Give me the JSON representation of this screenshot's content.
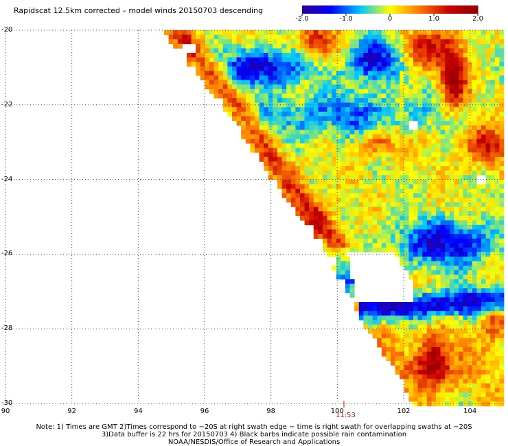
{
  "title": "Rapidscat 12.5km corrected – model winds 20150703 descending",
  "colorbar": {
    "min": -2.0,
    "max": 2.0,
    "tick_labels": [
      "-2.0",
      "-1.0",
      "0",
      "1.0",
      "2.0"
    ],
    "tick_values": [
      -2.0,
      -1.0,
      0,
      1.0,
      2.0
    ],
    "colors": [
      "#2a0090",
      "#0000ff",
      "#00c8ff",
      "#ffff00",
      "#ff7800",
      "#c80000",
      "#900000"
    ]
  },
  "chart_data": {
    "type": "heatmap",
    "title": "Rapidscat 12.5km corrected – model winds 20150703 descending",
    "x_range": [
      90,
      105
    ],
    "y_range": [
      -30,
      -20
    ],
    "x_ticks": [
      "90",
      "92",
      "94",
      "96",
      "98",
      "100",
      "102",
      "104"
    ],
    "x_tick_values": [
      90,
      92,
      94,
      96,
      98,
      100,
      102,
      104
    ],
    "y_ticks": [
      "-20",
      "-22",
      "-24",
      "-26",
      "-28",
      "-30"
    ],
    "y_tick_values": [
      -20,
      -22,
      -24,
      -26,
      -28,
      -30
    ],
    "grid": "dotted",
    "value_range": [
      -2.0,
      2.0
    ],
    "swath_edge": [
      [
        94.7,
        -20.0
      ],
      [
        96.5,
        -22.0
      ],
      [
        98.0,
        -24.0
      ],
      [
        99.4,
        -25.6
      ],
      [
        100.6,
        -27.6
      ],
      [
        102.3,
        -30.0
      ]
    ],
    "time_annotation": {
      "label": "11:53",
      "x": 100.2
    }
  },
  "footer": {
    "line1": "Note: 1) Times are GMT 2)Times correspond to −20S at right swath edge − time is right swath for overlapping swaths at −20S",
    "line2": "3)Data buffer is 22 hrs for 20150703 4) Black barbs indicate possible rain contamination",
    "line3": "NOAA/NESDIS/Office of Research and Applications"
  }
}
